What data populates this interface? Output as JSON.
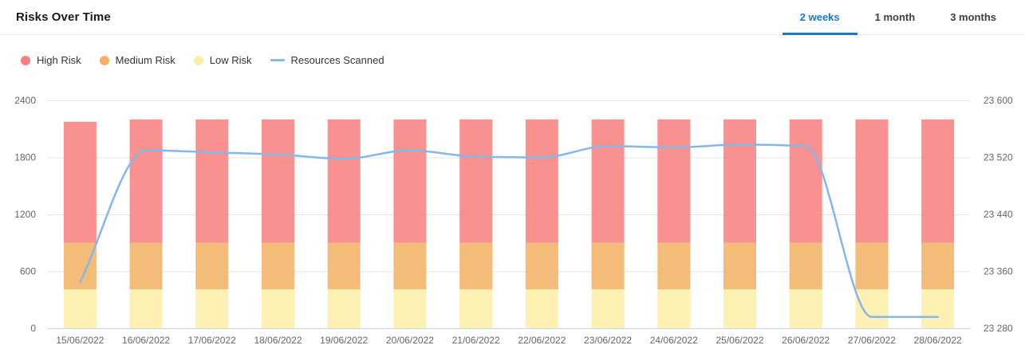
{
  "header": {
    "title": "Risks Over Time",
    "tabs": [
      {
        "label": "2 weeks",
        "selected": true
      },
      {
        "label": "1 month",
        "selected": false
      },
      {
        "label": "3 months",
        "selected": false
      }
    ]
  },
  "colors": {
    "tab_active": "#1976d2",
    "grid": "#e6e6e6",
    "axis_line": "#ccd6eb",
    "axis_text": "#666666",
    "divider": "#e7e7e7"
  },
  "chart_data": {
    "type": "bar",
    "subtype": "stacked-column-with-line",
    "title": "Risks Over Time",
    "grid": true,
    "legend_position": "top-left",
    "categories": [
      "15/06/2022",
      "16/06/2022",
      "17/06/2022",
      "18/06/2022",
      "19/06/2022",
      "20/06/2022",
      "21/06/2022",
      "22/06/2022",
      "23/06/2022",
      "24/06/2022",
      "25/06/2022",
      "26/06/2022",
      "27/06/2022",
      "28/06/2022"
    ],
    "series": [
      {
        "name": "Low Risk",
        "type": "bar",
        "stack_order": 0,
        "color": "#fbeda6",
        "values": [
          410,
          410,
          410,
          410,
          410,
          410,
          410,
          410,
          410,
          410,
          410,
          410,
          410,
          410
        ]
      },
      {
        "name": "Medium Risk",
        "type": "bar",
        "stack_order": 1,
        "color": "#f1b161",
        "values": [
          490,
          490,
          490,
          490,
          490,
          490,
          490,
          490,
          490,
          490,
          490,
          490,
          490,
          490
        ]
      },
      {
        "name": "High Risk",
        "type": "bar",
        "stack_order": 2,
        "color": "#f87e7e",
        "values": [
          1275,
          1300,
          1300,
          1300,
          1300,
          1300,
          1300,
          1300,
          1300,
          1300,
          1300,
          1300,
          1300,
          1300
        ]
      },
      {
        "name": "Resources Scanned",
        "type": "line",
        "axis": "right",
        "color": "#85b7ea",
        "values": [
          23345,
          23530,
          23527,
          23524,
          23518,
          23530,
          23521,
          23520,
          23536,
          23534,
          23538,
          23536,
          23296,
          23296
        ]
      }
    ],
    "left_axis": {
      "min": 0,
      "max": 2400,
      "ticks": [
        {
          "value": 0,
          "label": "0"
        },
        {
          "value": 600,
          "label": "600"
        },
        {
          "value": 1200,
          "label": "1200"
        },
        {
          "value": 1800,
          "label": "1800"
        },
        {
          "value": 2400,
          "label": "2400"
        }
      ]
    },
    "right_axis": {
      "min": 23280,
      "max": 23600,
      "ticks": [
        {
          "value": 23280,
          "label": "23 280"
        },
        {
          "value": 23360,
          "label": "23 360"
        },
        {
          "value": 23440,
          "label": "23 440"
        },
        {
          "value": 23520,
          "label": "23 520"
        },
        {
          "value": 23600,
          "label": "23 600"
        }
      ]
    },
    "legend_order": [
      "High Risk",
      "Medium Risk",
      "Low Risk",
      "Resources Scanned"
    ]
  }
}
